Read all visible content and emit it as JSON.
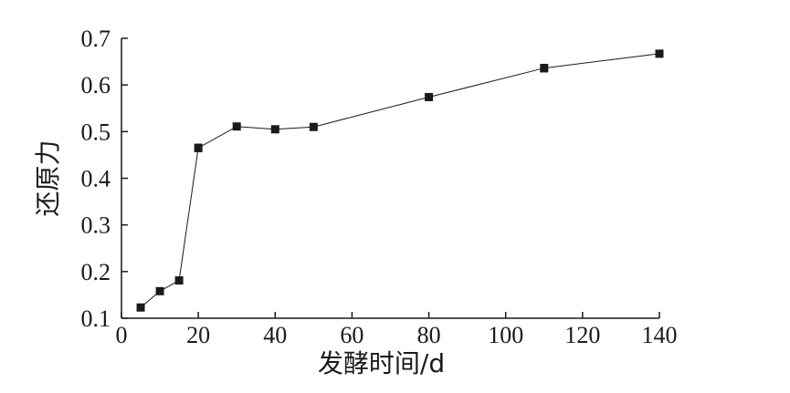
{
  "chart_data": {
    "type": "line",
    "title": "",
    "xlabel": "发酵时间/d",
    "ylabel": "还原力",
    "xlim": [
      0,
      140
    ],
    "ylim": [
      0.1,
      0.7
    ],
    "xticks": [
      0,
      20,
      40,
      60,
      80,
      100,
      120,
      140
    ],
    "yticks": [
      0.1,
      0.2,
      0.3,
      0.4,
      0.5,
      0.6,
      0.7
    ],
    "xtick_labels": [
      "0",
      "20",
      "40",
      "60",
      "80",
      "100",
      "120",
      "140"
    ],
    "ytick_labels": [
      "0.1",
      "0.2",
      "0.3",
      "0.4",
      "0.5",
      "0.6",
      "0.7"
    ],
    "grid": false,
    "legend": "none",
    "marker": "square",
    "error_bars": true,
    "color": "#1a1a1a",
    "series": [
      {
        "x": [
          5,
          10,
          15,
          20,
          30,
          40,
          50,
          80,
          110,
          140
        ],
        "y": [
          0.123,
          0.158,
          0.181,
          0.465,
          0.511,
          0.505,
          0.51,
          0.574,
          0.636,
          0.667
        ],
        "err": [
          0.007,
          0.006,
          0.007,
          0.008,
          0.007,
          0.006,
          0.007,
          0.007,
          0.008,
          0.006
        ]
      }
    ]
  }
}
